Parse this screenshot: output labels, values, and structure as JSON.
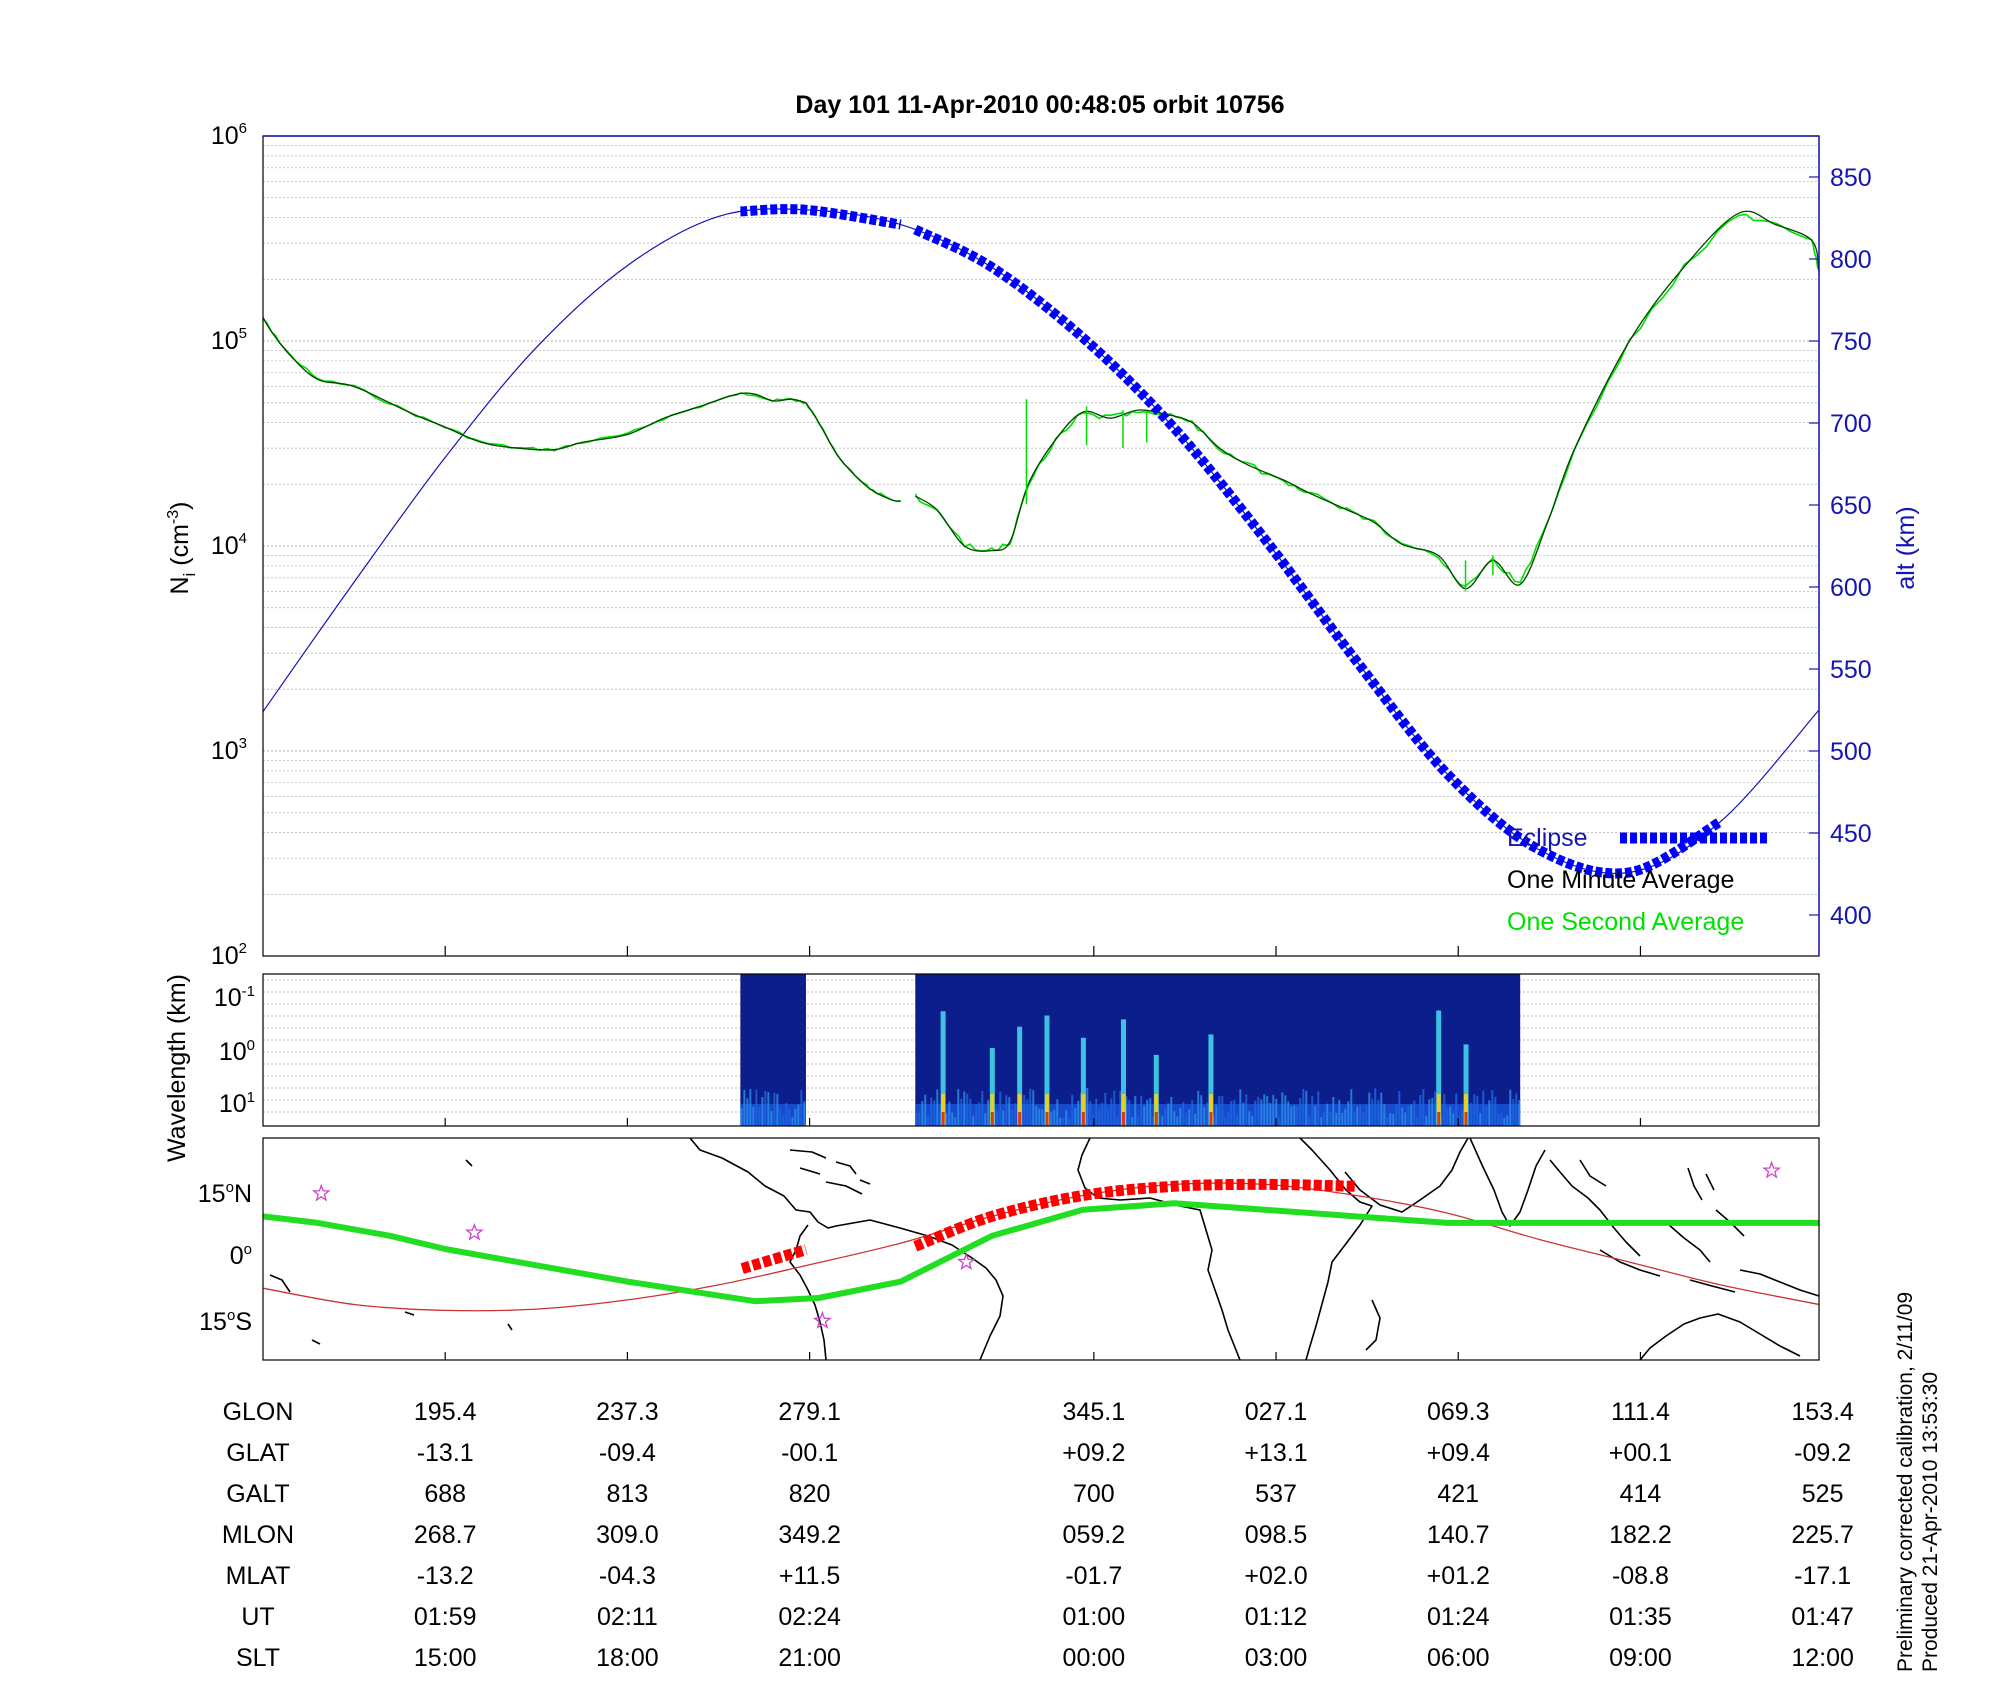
{
  "title": "Day 101  11-Apr-2010 00:48:05   orbit 10756",
  "colors": {
    "alt_axis": "#1515b4",
    "eclipse": "#0000ff",
    "one_minute": "#004400",
    "one_second": "#00e000",
    "track_fit": "#cc3333",
    "track_eclipse": "#ff0000",
    "orbit_track": "#22dd22",
    "star": "#cc44cc",
    "spec_bg": "#0b1e8c"
  },
  "chart_data": [
    {
      "type": "line",
      "panel": "density",
      "ylabel": "N",
      "ylabel_sub": "i",
      "ylabel_unit": "(cm",
      "ylabel_unit_exp": "-3",
      "ylabel_close": ")",
      "yscale": "log",
      "ylim": [
        100,
        1000000
      ],
      "y_ticks": [
        {
          "base": "10",
          "exp": "2",
          "value": 100
        },
        {
          "base": "10",
          "exp": "3",
          "value": 1000
        },
        {
          "base": "10",
          "exp": "4",
          "value": 10000
        },
        {
          "base": "10",
          "exp": "5",
          "value": 100000
        },
        {
          "base": "10",
          "exp": "6",
          "value": 1000000
        }
      ],
      "y2label": "alt (km)",
      "y2lim": [
        375,
        875
      ],
      "y2_ticks": [
        "400",
        "450",
        "500",
        "550",
        "600",
        "650",
        "700",
        "750",
        "800",
        "850"
      ],
      "xlim": [
        0,
        8.54
      ],
      "grid": true,
      "legend_position": "bottom-right",
      "legend": [
        {
          "label": "Eclipse",
          "key": "eclipse"
        },
        {
          "label": "One Minute Average",
          "key": "one_minute"
        },
        {
          "label": "One Second Average",
          "key": "one_second"
        }
      ],
      "series": [
        {
          "key": "alt",
          "axis": "right",
          "x": [
            0,
            0.5,
            1,
            1.5,
            2,
            2.5,
            2.98,
            3.5,
            4,
            4.5,
            5,
            5.5,
            6,
            6.5,
            7,
            7.5,
            8,
            8.54
          ],
          "y": [
            524,
            603,
            679,
            746,
            796,
            826,
            830,
            821,
            795,
            752,
            697,
            629,
            555,
            486,
            440,
            426,
            457,
            525
          ]
        },
        {
          "key": "density_a",
          "axis": "left",
          "x": [
            0,
            0.05,
            0.15,
            0.3,
            0.5,
            0.8,
            1.0,
            1.2,
            1.4,
            1.6,
            1.75,
            2.0,
            2.2,
            2.4,
            2.6,
            2.7,
            2.8,
            2.9,
            2.98
          ],
          "y": [
            130000,
            110000,
            85000,
            65000,
            60000,
            45000,
            38000,
            32000,
            30000,
            29500,
            32000,
            35000,
            42000,
            48000,
            55000,
            55000,
            51000,
            52000,
            50000
          ]
        },
        {
          "key": "density_a2",
          "axis": "left",
          "x": [
            2.98,
            3.05,
            3.15,
            3.25,
            3.35,
            3.45,
            3.5
          ],
          "y": [
            50000,
            40000,
            28000,
            22000,
            18500,
            16800,
            16500
          ]
        },
        {
          "key": "density_b",
          "axis": "left",
          "x": [
            3.58,
            3.7,
            3.85,
            4.0,
            4.1,
            4.2,
            4.35,
            4.5,
            4.65,
            4.8,
            4.95,
            5.1,
            5.25,
            5.4,
            5.6,
            5.75,
            5.95,
            6.1,
            6.25,
            6.45,
            6.6,
            6.75,
            6.9,
            7.05,
            7.2,
            7.5,
            7.8,
            8.1,
            8.3,
            8.5,
            8.54
          ],
          "y": [
            17500,
            15000,
            10000,
            9500,
            10500,
            20000,
            33000,
            45000,
            42000,
            46000,
            44000,
            40000,
            30000,
            25000,
            21000,
            18000,
            15000,
            13000,
            10200,
            9000,
            6200,
            8500,
            6500,
            13000,
            30000,
            100000,
            230000,
            420000,
            370000,
            310000,
            220000
          ]
        },
        {
          "key": "eclipse_a",
          "axis": "right",
          "x": [
            2.62,
            2.98,
            3.5
          ],
          "y": [
            829,
            830,
            821
          ]
        },
        {
          "key": "eclipse_b",
          "axis": "right",
          "x": [
            3.58,
            4,
            4.5,
            5,
            5.5,
            6,
            6.5,
            7,
            7.5,
            8
          ],
          "y": [
            818,
            795,
            752,
            697,
            629,
            555,
            486,
            440,
            426,
            457
          ]
        }
      ]
    },
    {
      "type": "heatmap",
      "panel": "spectrogram",
      "ylabel": "Wavelength (km)",
      "yscale": "log",
      "y_ticks": [
        {
          "base": "10",
          "exp": "-1"
        },
        {
          "base": "10",
          "exp": "0"
        },
        {
          "base": "10",
          "exp": "1"
        }
      ],
      "segments": [
        {
          "x_from": 2.62,
          "x_to": 2.98
        },
        {
          "x_from": 3.58,
          "x_to": 6.9
        }
      ],
      "hot_spots": [
        3.73,
        4.0,
        4.15,
        4.3,
        4.5,
        4.72,
        4.9,
        5.2,
        6.45,
        6.6
      ]
    },
    {
      "type": "line",
      "panel": "map",
      "ylim": [
        -17,
        17
      ],
      "y_ticks": [
        {
          "deg": "15",
          "dir": "N",
          "value": 15
        },
        {
          "deg": "0",
          "dir": "",
          "value": 0
        },
        {
          "deg": "15",
          "dir": "S",
          "value": -15
        }
      ],
      "series": [
        {
          "key": "orbit_track",
          "x": [
            0,
            0.3,
            0.7,
            1.0,
            2.0,
            2.7,
            3.05,
            3.5,
            4,
            4.5,
            5,
            5.5,
            6,
            6.5,
            7,
            8,
            8.54
          ],
          "y": [
            5,
            4,
            2,
            0,
            -5,
            -8,
            -7.5,
            -5,
            2,
            6,
            7,
            6,
            5,
            4,
            4,
            4,
            4
          ]
        },
        {
          "key": "track_fit",
          "x": [
            0,
            0.5,
            1.0,
            1.5,
            2.0,
            2.5,
            3.0,
            3.5,
            4.0,
            4.5,
            5.0,
            5.5,
            6.0,
            6.5,
            7.0,
            7.5,
            8.0,
            8.54
          ],
          "y": [
            -6,
            -8.5,
            -9.4,
            -9.2,
            -7.8,
            -5.5,
            -2.4,
            0.9,
            5.0,
            8.2,
            9.9,
            9.9,
            8.2,
            5.5,
            1.5,
            -2.0,
            -5.5,
            -8.5
          ]
        },
        {
          "key": "track_eclipse_a",
          "x": [
            2.63,
            2.98
          ],
          "y": [
            -3.0,
            -0.1
          ]
        },
        {
          "key": "track_eclipse_b",
          "x": [
            3.58,
            4.0,
            4.5,
            5.0,
            5.5,
            6.0
          ],
          "y": [
            0.4,
            5.0,
            8.2,
            9.6,
            9.9,
            9.6
          ]
        }
      ],
      "stars": [
        {
          "x": 0.32,
          "y": 8.5
        },
        {
          "x": 1.16,
          "y": 2.5
        },
        {
          "x": 3.07,
          "y": -11
        },
        {
          "x": 3.86,
          "y": -2
        },
        {
          "x": 8.28,
          "y": 12
        }
      ]
    }
  ],
  "table": {
    "rows": [
      {
        "label": "GLON",
        "values": [
          "195.4",
          "237.3",
          "279.1",
          "345.1",
          "027.1",
          "069.3",
          "111.4",
          "153.4"
        ]
      },
      {
        "label": "GLAT",
        "values": [
          "-13.1",
          "-09.4",
          "-00.1",
          "+09.2",
          "+13.1",
          "+09.4",
          "+00.1",
          "-09.2"
        ]
      },
      {
        "label": "GALT",
        "values": [
          "688",
          "813",
          "820",
          "700",
          "537",
          "421",
          "414",
          "525"
        ]
      },
      {
        "label": "MLON",
        "values": [
          "268.7",
          "309.0",
          "349.2",
          "059.2",
          "098.5",
          "140.7",
          "182.2",
          "225.7"
        ]
      },
      {
        "label": "MLAT",
        "values": [
          "-13.2",
          "-04.3",
          "+11.5",
          "-01.7",
          "+02.0",
          "+01.2",
          "-08.8",
          "-17.1"
        ]
      },
      {
        "label": "UT",
        "values": [
          "01:59",
          "02:11",
          "02:24",
          "01:00",
          "01:12",
          "01:24",
          "01:35",
          "01:47"
        ]
      },
      {
        "label": "SLT",
        "values": [
          "15:00",
          "18:00",
          "21:00",
          "00:00",
          "03:00",
          "06:00",
          "09:00",
          "12:00"
        ]
      }
    ],
    "column_x": [
      1,
      2,
      3,
      4.56,
      5.56,
      6.56,
      7.56,
      8.56
    ]
  },
  "footer": {
    "line1": "Preliminary corrected calibration, 2/11/09",
    "line2": "Produced 21-Apr-2010 13:53:30"
  }
}
